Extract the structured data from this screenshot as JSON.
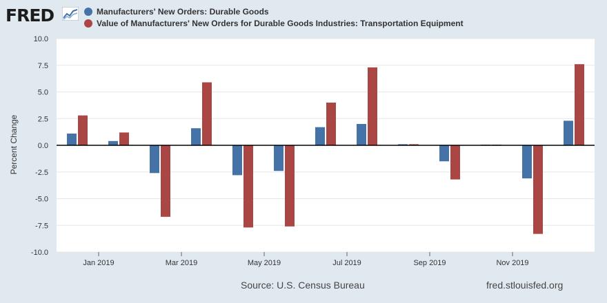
{
  "header": {
    "logo_text": "FRED"
  },
  "chart_data": {
    "type": "bar",
    "ylabel": "Percent Change",
    "ylim": [
      -10,
      10
    ],
    "yticks": [
      "10.0",
      "7.5",
      "5.0",
      "2.5",
      "0.0",
      "-2.5",
      "-5.0",
      "-7.5",
      "-10.0"
    ],
    "ytick_values": [
      10,
      7.5,
      5,
      2.5,
      0,
      -2.5,
      -5,
      -7.5,
      -10
    ],
    "categories": [
      "Dec 2018",
      "Jan 2019",
      "Feb 2019",
      "Mar 2019",
      "Apr 2019",
      "May 2019",
      "Jun 2019",
      "Jul 2019",
      "Aug 2019",
      "Sep 2019",
      "Oct 2019",
      "Nov 2019",
      "Dec 2019"
    ],
    "xtick_labels": [
      "Jan 2019",
      "Mar 2019",
      "May 2019",
      "Jul 2019",
      "Sep 2019",
      "Nov 2019"
    ],
    "xtick_category_index": [
      1,
      3,
      5,
      7,
      9,
      11
    ],
    "series": [
      {
        "name": "Manufacturers' New Orders: Durable Goods",
        "color": "#4572a7",
        "values": [
          1.1,
          0.4,
          -2.6,
          1.6,
          -2.8,
          -2.4,
          1.7,
          2.0,
          0.1,
          -1.5,
          0.0,
          -3.1,
          2.3
        ]
      },
      {
        "name": "Value of Manufacturers' New Orders for Durable Goods Industries: Transportation Equipment",
        "color": "#aa4643",
        "values": [
          2.8,
          1.2,
          -6.7,
          5.9,
          -7.7,
          -7.6,
          4.0,
          7.3,
          0.1,
          -3.2,
          0.0,
          -8.3,
          7.6
        ]
      }
    ]
  },
  "footer": {
    "source": "Source: U.S. Census Bureau",
    "site": "fred.stlouisfed.org"
  }
}
